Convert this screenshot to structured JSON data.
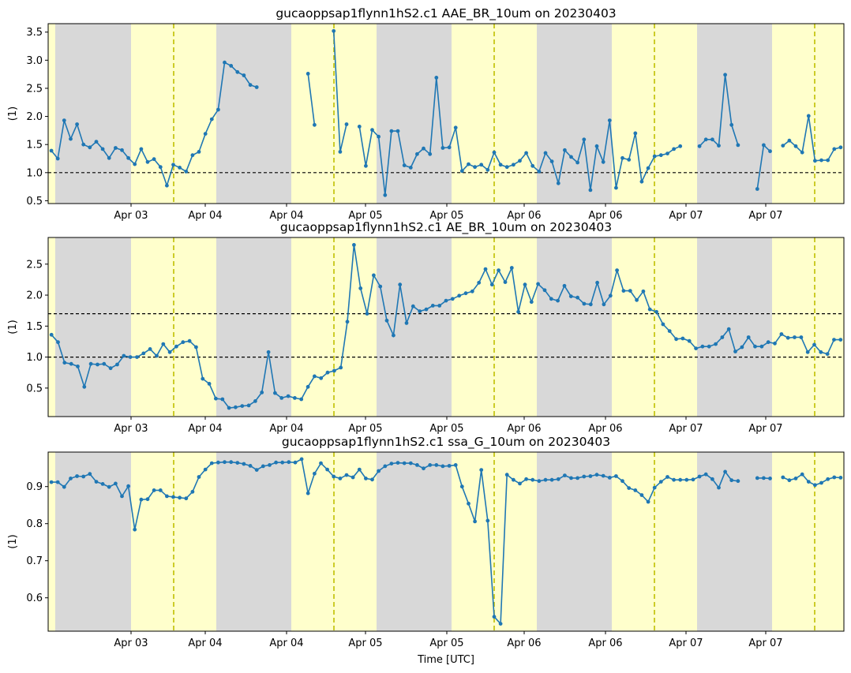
{
  "figure": {
    "xlabel": "Time [UTC]",
    "x_tick_labels": [
      "Apr 03",
      "Apr 04",
      "Apr 04",
      "Apr 05",
      "Apr 05",
      "Apr 06",
      "Apr 06",
      "Apr 07",
      "Apr 07"
    ]
  },
  "colors": {
    "line": "#1f77b4",
    "night_band": "#d8d8d8",
    "day_band": "#ffffcc",
    "noon_line": "#bfbf00",
    "threshold_line": "#000000"
  },
  "chart_data": [
    {
      "type": "line",
      "title": "gucaoppsap1flynn1hS2.c1 AAE_BR_10um on 20230403",
      "ylabel": "(1)",
      "ylim": [
        0.45,
        3.65
      ],
      "yticks": [
        0.5,
        1.0,
        1.5,
        2.0,
        2.5,
        3.0,
        3.5
      ],
      "ytick_labels": [
        "0.5",
        "1.0",
        "1.5",
        "2.0",
        "2.5",
        "3.0",
        "3.5"
      ],
      "thresholds": [
        1.0
      ],
      "x_unit": "hours",
      "x_range": [
        0,
        125
      ],
      "values": [
        1.39,
        1.25,
        1.93,
        1.6,
        1.86,
        1.5,
        1.45,
        1.55,
        1.42,
        1.26,
        1.44,
        1.4,
        1.26,
        1.15,
        1.42,
        1.19,
        1.24,
        1.1,
        0.77,
        1.14,
        1.09,
        1.02,
        1.31,
        1.37,
        1.69,
        1.95,
        2.12,
        2.96,
        2.9,
        2.79,
        2.73,
        2.56,
        2.52,
        null,
        null,
        null,
        null,
        null,
        null,
        null,
        2.76,
        1.85,
        null,
        null,
        3.52,
        1.37,
        1.86,
        null,
        1.82,
        1.12,
        1.76,
        1.64,
        0.6,
        1.74,
        1.74,
        1.13,
        1.09,
        1.33,
        1.43,
        1.33,
        2.69,
        1.44,
        1.45,
        1.8,
        1.03,
        1.15,
        1.1,
        1.14,
        1.05,
        1.36,
        1.14,
        1.1,
        1.14,
        1.21,
        1.35,
        1.12,
        1.02,
        1.35,
        1.2,
        0.81,
        1.4,
        1.28,
        1.18,
        1.59,
        0.69,
        1.47,
        1.19,
        1.93,
        0.73,
        1.26,
        1.23,
        1.7,
        0.84,
        1.08,
        1.29,
        1.31,
        1.34,
        1.42,
        1.47,
        null,
        null,
        1.47,
        1.59,
        1.59,
        1.48,
        2.74,
        1.85,
        1.49,
        null,
        null,
        0.71,
        1.49,
        1.38,
        null,
        1.48,
        1.57,
        1.47,
        1.36,
        2.01,
        1.21,
        1.22,
        1.22,
        1.42,
        1.45
      ]
    },
    {
      "type": "line",
      "title": "gucaoppsap1flynn1hS2.c1 AE_BR_10um on 20230403",
      "ylabel": "(1)",
      "ylim": [
        0.04,
        2.93
      ],
      "yticks": [
        0.5,
        1.0,
        1.5,
        2.0,
        2.5
      ],
      "ytick_labels": [
        "0.5",
        "1.0",
        "1.5",
        "2.0",
        "2.5"
      ],
      "thresholds": [
        1.0,
        1.7
      ],
      "x_unit": "hours",
      "x_range": [
        0,
        125
      ],
      "values": [
        1.36,
        1.24,
        0.91,
        0.89,
        0.85,
        0.52,
        0.89,
        0.88,
        0.89,
        0.82,
        0.88,
        1.02,
        1.0,
        1.0,
        1.06,
        1.13,
        1.02,
        1.21,
        1.08,
        1.17,
        1.24,
        1.26,
        1.16,
        0.65,
        0.57,
        0.33,
        0.32,
        0.18,
        0.19,
        0.21,
        0.22,
        0.29,
        0.43,
        1.08,
        0.42,
        0.34,
        0.37,
        0.34,
        0.32,
        0.52,
        0.69,
        0.66,
        0.75,
        0.78,
        0.83,
        1.57,
        2.81,
        2.11,
        1.7,
        2.32,
        2.14,
        1.59,
        1.35,
        2.17,
        1.55,
        1.82,
        1.74,
        1.77,
        1.83,
        1.83,
        1.91,
        1.94,
        1.99,
        2.03,
        2.06,
        2.2,
        2.42,
        2.17,
        2.4,
        2.21,
        2.44,
        1.73,
        2.17,
        1.89,
        2.18,
        2.08,
        1.94,
        1.91,
        2.15,
        1.98,
        1.96,
        1.86,
        1.85,
        2.2,
        1.85,
        1.99,
        2.4,
        2.07,
        2.07,
        1.92,
        2.06,
        1.77,
        1.73,
        1.53,
        1.42,
        1.29,
        1.3,
        1.26,
        1.14,
        1.17,
        1.17,
        1.21,
        1.32,
        1.45,
        1.09,
        1.16,
        1.32,
        1.17,
        1.17,
        1.24,
        1.22,
        1.37,
        1.31,
        1.32,
        1.32,
        1.08,
        1.2,
        1.08,
        1.05,
        1.28,
        1.28
      ]
    },
    {
      "type": "line",
      "title": "gucaoppsap1flynn1hS2.c1 ssa_G_10um on 20230403",
      "ylabel": "(1)",
      "ylim": [
        0.51,
        0.993
      ],
      "yticks": [
        0.6,
        0.7,
        0.8,
        0.9
      ],
      "ytick_labels": [
        "0.6",
        "0.7",
        "0.8",
        "0.9"
      ],
      "thresholds": [],
      "x_unit": "hours",
      "x_range": [
        0,
        125
      ],
      "values": [
        0.912,
        0.912,
        0.899,
        0.922,
        0.928,
        0.927,
        0.934,
        0.913,
        0.907,
        0.899,
        0.908,
        0.874,
        0.901,
        0.784,
        0.865,
        0.866,
        0.89,
        0.89,
        0.874,
        0.872,
        0.87,
        0.868,
        0.886,
        0.926,
        0.946,
        0.963,
        0.965,
        0.966,
        0.966,
        0.964,
        0.961,
        0.956,
        0.945,
        0.955,
        0.958,
        0.965,
        0.965,
        0.966,
        0.965,
        0.974,
        0.882,
        0.935,
        0.963,
        0.946,
        0.927,
        0.922,
        0.931,
        0.925,
        0.946,
        0.922,
        0.919,
        0.942,
        0.955,
        0.962,
        0.964,
        0.963,
        0.963,
        0.958,
        0.949,
        0.958,
        0.958,
        0.955,
        0.956,
        0.958,
        0.9,
        0.854,
        0.806,
        0.945,
        0.808,
        0.549,
        0.53,
        0.932,
        0.918,
        0.908,
        0.92,
        0.918,
        0.915,
        0.918,
        0.918,
        0.92,
        0.93,
        0.923,
        0.923,
        0.927,
        0.928,
        0.932,
        0.929,
        0.924,
        0.928,
        0.915,
        0.896,
        0.89,
        0.877,
        0.859,
        0.897,
        0.913,
        0.926,
        0.918,
        0.918,
        0.918,
        0.919,
        0.927,
        0.933,
        0.92,
        0.897,
        0.94,
        0.917,
        0.915,
        null,
        null,
        0.923,
        0.923,
        0.922,
        null,
        0.925,
        0.917,
        0.922,
        0.933,
        0.913,
        0.904,
        0.91,
        0.92,
        0.925,
        0.924
      ]
    }
  ]
}
